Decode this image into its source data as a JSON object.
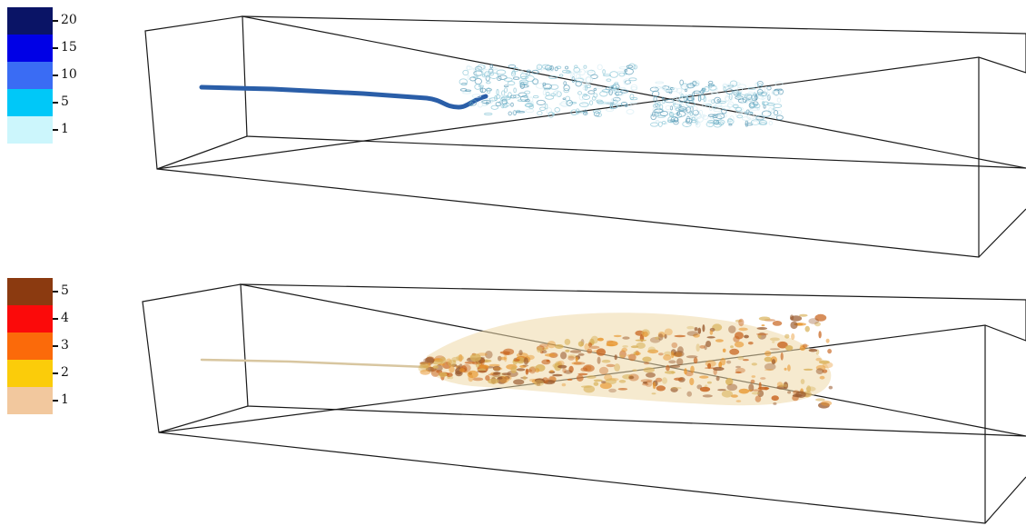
{
  "legends": {
    "top": {
      "levels": [
        {
          "label": "20",
          "color": "#0a1466"
        },
        {
          "label": "15",
          "color": "#0000e6"
        },
        {
          "label": "10",
          "color": "#3a6cf4"
        },
        {
          "label": "5",
          "color": "#00c8f8"
        },
        {
          "label": "1",
          "color": "#ccf6fc"
        }
      ]
    },
    "bottom": {
      "levels": [
        {
          "label": "5",
          "color": "#8b3a10"
        },
        {
          "label": "4",
          "color": "#fb0a0a"
        },
        {
          "label": "3",
          "color": "#fb6a0a"
        },
        {
          "label": "2",
          "color": "#fbcc0a"
        },
        {
          "label": "1",
          "color": "#f2c89e"
        }
      ]
    }
  },
  "panels": {
    "top": {
      "plume_colors": [
        "#2a5ea8",
        "#8fc8d8",
        "#5f9eb8",
        "#d8eef4"
      ]
    },
    "bottom": {
      "plume_colors": [
        "#c8641e",
        "#e8962e",
        "#d9b25a",
        "#9a5a2e",
        "#efd9a8"
      ]
    }
  }
}
